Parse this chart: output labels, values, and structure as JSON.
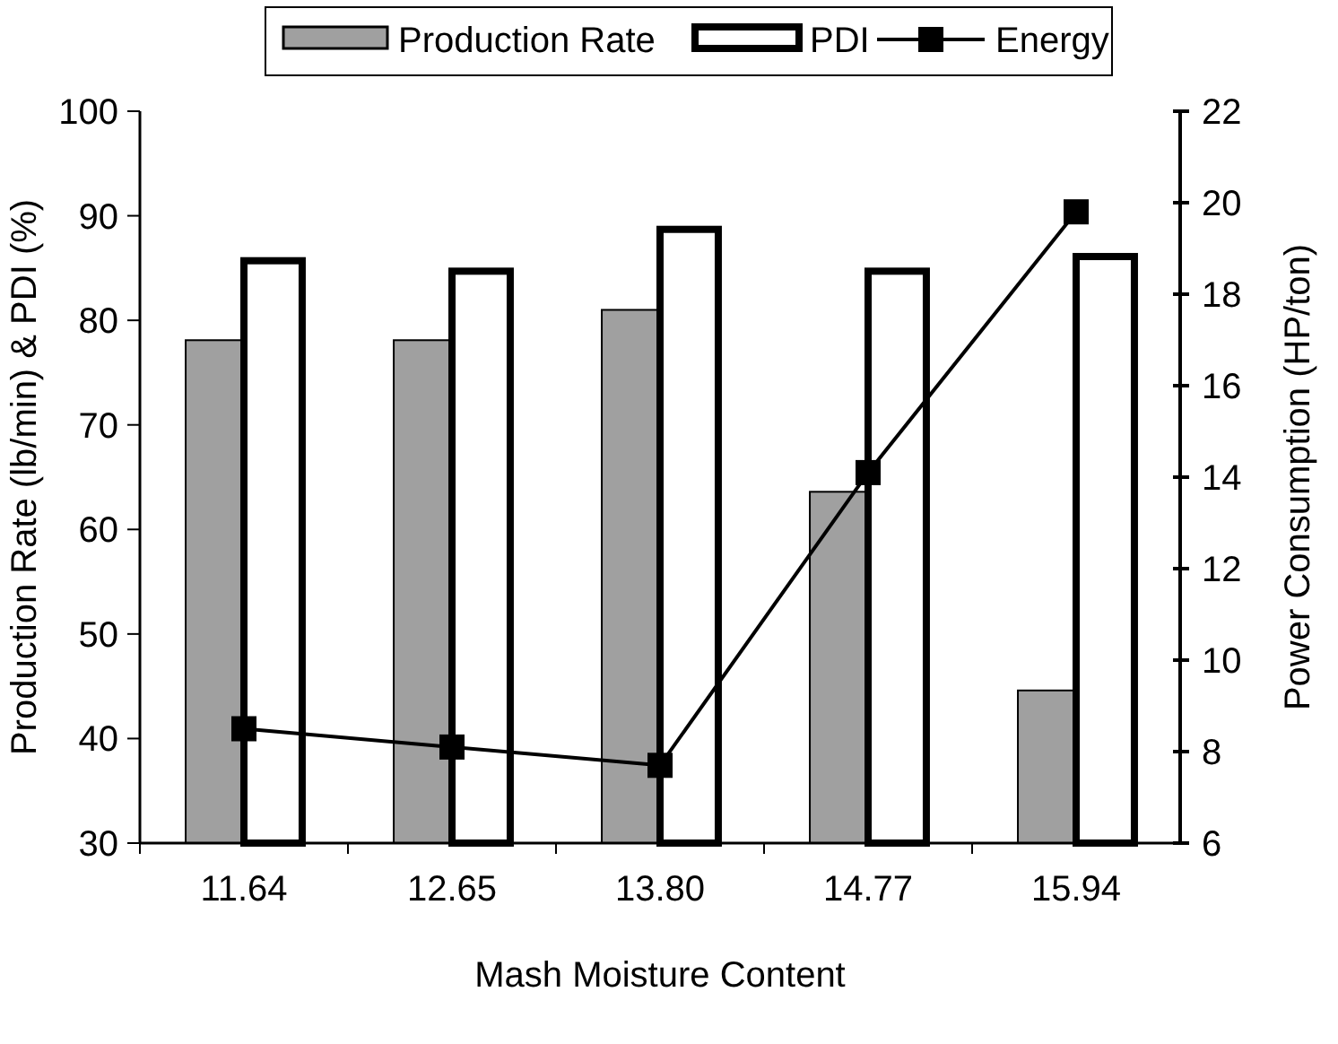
{
  "chart_data": {
    "type": "bar",
    "xlabel": "Mash Moisture Content",
    "ylabel": "Production Rate (lb/min) & PDI (%)",
    "y2label": "Power Consumption (HP/ton)",
    "categories": [
      "11.64",
      "12.65",
      "13.80",
      "14.77",
      "15.94"
    ],
    "series": [
      {
        "name": "Production Rate",
        "color": "#a0a0a0",
        "values": [
          78.1,
          78.1,
          81.0,
          63.6,
          44.6
        ]
      },
      {
        "name": "PDI",
        "color": "#ffffff",
        "values": [
          85.7,
          84.7,
          88.7,
          84.7,
          86.1
        ]
      },
      {
        "name": "Energy",
        "type": "line",
        "axis": "y2",
        "color": "#000000",
        "values": [
          8.5,
          8.1,
          7.7,
          14.1,
          19.8
        ]
      }
    ],
    "ylim": [
      30,
      100
    ],
    "yticks": [
      30,
      40,
      50,
      60,
      70,
      80,
      90,
      100
    ],
    "y2lim": [
      6,
      22
    ],
    "y2ticks": [
      6,
      8,
      10,
      12,
      14,
      16,
      18,
      20,
      22
    ],
    "legend": "top",
    "marker": "square",
    "grid": false
  }
}
